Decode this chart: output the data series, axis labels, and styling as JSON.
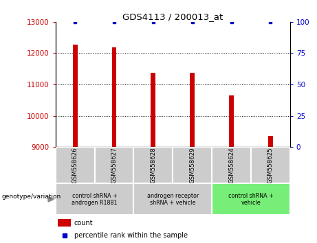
{
  "title": "GDS4113 / 200013_at",
  "samples": [
    "GSM558626",
    "GSM558627",
    "GSM558628",
    "GSM558629",
    "GSM558624",
    "GSM558625"
  ],
  "counts": [
    12280,
    12180,
    11380,
    11380,
    10650,
    9350
  ],
  "percentiles": [
    100,
    100,
    100,
    100,
    100,
    100
  ],
  "ylim_left": [
    9000,
    13000
  ],
  "ylim_right": [
    0,
    100
  ],
  "yticks_left": [
    9000,
    10000,
    11000,
    12000,
    13000
  ],
  "yticks_right": [
    0,
    25,
    50,
    75,
    100
  ],
  "bar_color": "#cc0000",
  "percentile_color": "#0000cc",
  "groups": [
    {
      "label": "control shRNA +\nandrogen R1881",
      "start": 0,
      "end": 2,
      "color": "#cccccc"
    },
    {
      "label": "androgen receptor\nshRNA + vehicle",
      "start": 2,
      "end": 4,
      "color": "#cccccc"
    },
    {
      "label": "control shRNA +\nvehicle",
      "start": 4,
      "end": 6,
      "color": "#77ee77"
    }
  ],
  "xlabel_group": "genotype/variation",
  "legend_count_label": "count",
  "legend_percentile_label": "percentile rank within the sample",
  "tick_label_color_left": "#cc0000",
  "tick_label_color_right": "#0000cc",
  "bar_width": 0.12,
  "sample_box_color": "#cccccc",
  "gridline_color": "#000000",
  "gridline_style": "dotted"
}
